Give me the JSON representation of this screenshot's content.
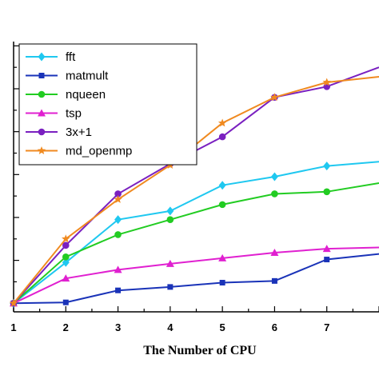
{
  "chart_data": {
    "type": "line",
    "title": "",
    "xlabel": "The Number of CPU",
    "ylabel": "",
    "x": [
      1,
      2,
      3,
      4,
      5,
      6,
      7,
      8
    ],
    "xlim": [
      1,
      8
    ],
    "ylim": [
      0.8,
      7.1
    ],
    "yticks": [
      1,
      2,
      3,
      4,
      5,
      6,
      7
    ],
    "xtick_labels": [
      "1",
      "2",
      "3",
      "4",
      "5",
      "6",
      "7"
    ],
    "legend_position": "top-left",
    "grid": false,
    "series": [
      {
        "name": "fft",
        "color": "#1fc8f0",
        "marker": "diamond",
        "values": [
          1.0,
          1.95,
          2.95,
          3.15,
          3.75,
          3.95,
          4.2,
          4.3
        ]
      },
      {
        "name": "matmult",
        "color": "#1a33b8",
        "marker": "square",
        "values": [
          1.0,
          1.02,
          1.3,
          1.38,
          1.48,
          1.52,
          2.02,
          2.15
        ]
      },
      {
        "name": "nqueen",
        "color": "#22cc22",
        "marker": "circle",
        "values": [
          1.0,
          2.08,
          2.6,
          2.95,
          3.3,
          3.55,
          3.6,
          3.8
        ]
      },
      {
        "name": "tsp",
        "color": "#e020d0",
        "marker": "triangle",
        "values": [
          1.0,
          1.58,
          1.78,
          1.92,
          2.05,
          2.18,
          2.27,
          2.3
        ]
      },
      {
        "name": "3x+1",
        "color": "#7a20c0",
        "marker": "circle",
        "values": [
          1.0,
          2.35,
          3.55,
          4.25,
          4.88,
          5.8,
          6.05,
          6.5
        ]
      },
      {
        "name": "md_openmp",
        "color": "#f08a20",
        "marker": "star",
        "values": [
          1.0,
          2.5,
          3.42,
          4.22,
          5.2,
          5.8,
          6.15,
          6.28
        ]
      }
    ]
  }
}
